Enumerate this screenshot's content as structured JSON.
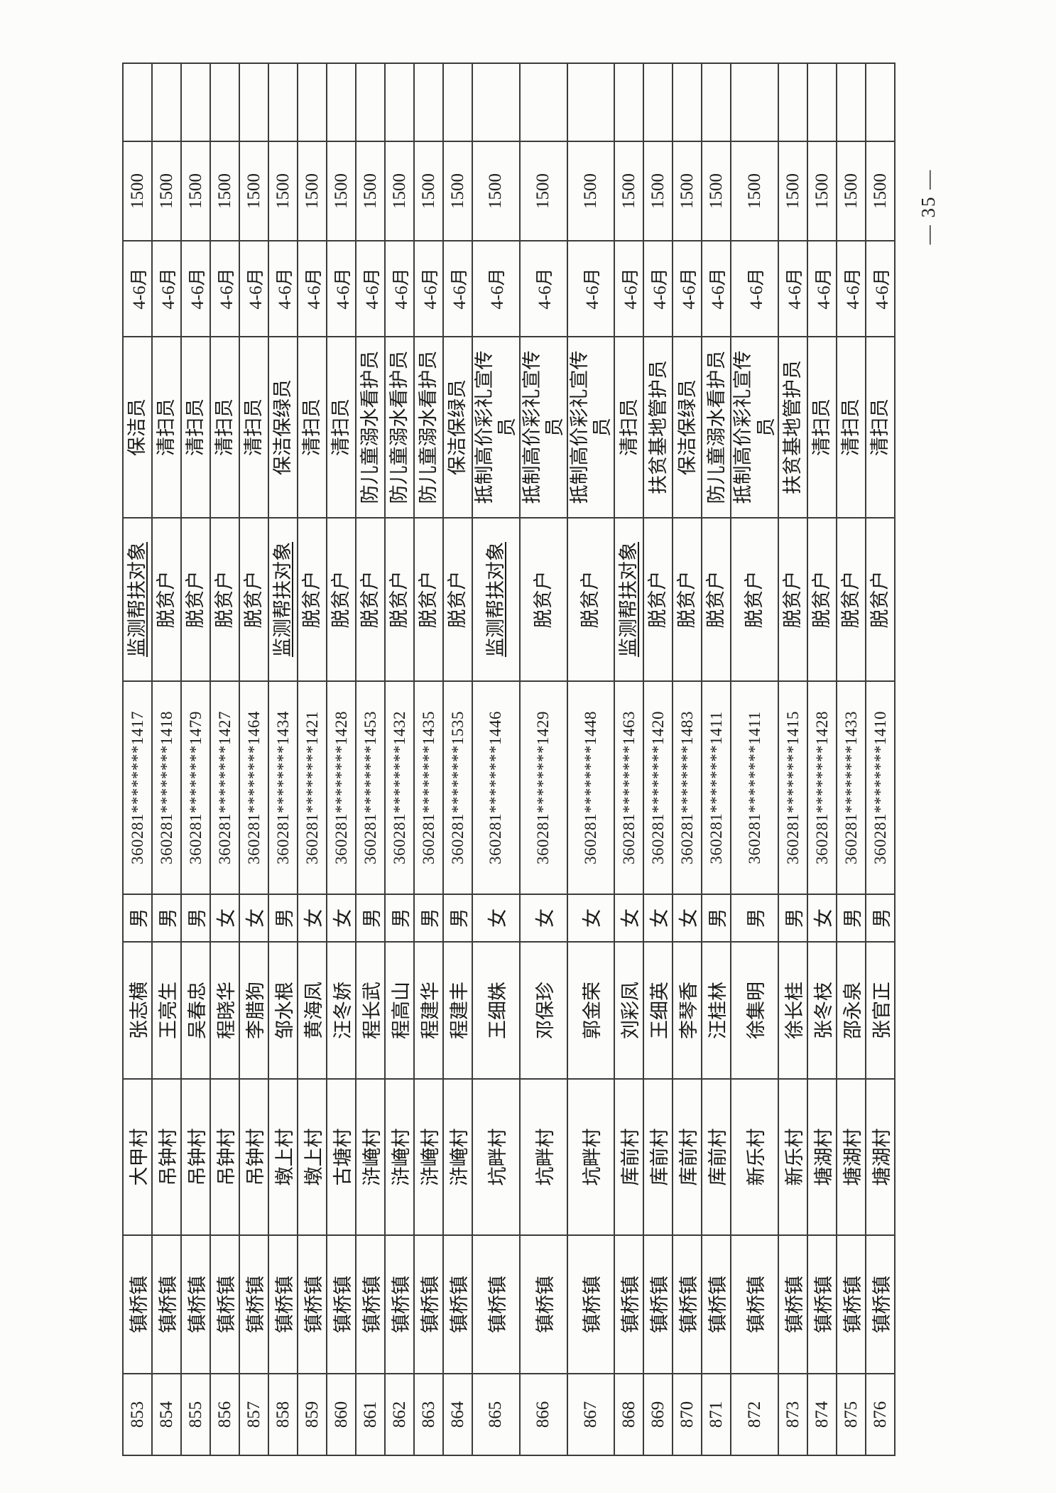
{
  "page": {
    "number_label": "— 35 —",
    "ink_color": "#1b1b1b",
    "line_color": "#3c3c3c",
    "paper_color": "#fcfcfa"
  },
  "table": {
    "orientation_note": "rotated-90deg-ccw-on-portrait-page",
    "rows": [
      {
        "seq": "853",
        "town": "镇桥镇",
        "village": "大甲村",
        "name": "张志横",
        "gender": "男",
        "id_number": "360281********1417",
        "category": "监测帮扶对象",
        "job": "保洁员",
        "months": "4-6月",
        "amount": "1500"
      },
      {
        "seq": "854",
        "town": "镇桥镇",
        "village": "吊钟村",
        "name": "王亮生",
        "gender": "男",
        "id_number": "360281********1418",
        "category": "脱贫户",
        "job": "清扫员",
        "months": "4-6月",
        "amount": "1500"
      },
      {
        "seq": "855",
        "town": "镇桥镇",
        "village": "吊钟村",
        "name": "吴春忠",
        "gender": "男",
        "id_number": "360281********1479",
        "category": "脱贫户",
        "job": "清扫员",
        "months": "4-6月",
        "amount": "1500"
      },
      {
        "seq": "856",
        "town": "镇桥镇",
        "village": "吊钟村",
        "name": "程晓华",
        "gender": "女",
        "id_number": "360281********1427",
        "category": "脱贫户",
        "job": "清扫员",
        "months": "4-6月",
        "amount": "1500"
      },
      {
        "seq": "857",
        "town": "镇桥镇",
        "village": "吊钟村",
        "name": "李腊狗",
        "gender": "女",
        "id_number": "360281********1464",
        "category": "脱贫户",
        "job": "清扫员",
        "months": "4-6月",
        "amount": "1500"
      },
      {
        "seq": "858",
        "town": "镇桥镇",
        "village": "墩上村",
        "name": "邹水根",
        "gender": "男",
        "id_number": "360281********1434",
        "category": "监测帮扶对象",
        "job": "保洁保绿员",
        "months": "4-6月",
        "amount": "1500"
      },
      {
        "seq": "859",
        "town": "镇桥镇",
        "village": "墩上村",
        "name": "黄海凤",
        "gender": "女",
        "id_number": "360281********1421",
        "category": "脱贫户",
        "job": "清扫员",
        "months": "4-6月",
        "amount": "1500"
      },
      {
        "seq": "860",
        "town": "镇桥镇",
        "village": "古塘村",
        "name": "汪冬娇",
        "gender": "女",
        "id_number": "360281********1428",
        "category": "脱贫户",
        "job": "清扫员",
        "months": "4-6月",
        "amount": "1500"
      },
      {
        "seq": "861",
        "town": "镇桥镇",
        "village": "浒崦村",
        "name": "程长武",
        "gender": "男",
        "id_number": "360281********1453",
        "category": "脱贫户",
        "job": "防儿童溺水看护员",
        "months": "4-6月",
        "amount": "1500"
      },
      {
        "seq": "862",
        "town": "镇桥镇",
        "village": "浒崦村",
        "name": "程高山",
        "gender": "男",
        "id_number": "360281********1432",
        "category": "脱贫户",
        "job": "防儿童溺水看护员",
        "months": "4-6月",
        "amount": "1500"
      },
      {
        "seq": "863",
        "town": "镇桥镇",
        "village": "浒崦村",
        "name": "程建华",
        "gender": "男",
        "id_number": "360281********1435",
        "category": "脱贫户",
        "job": "防儿童溺水看护员",
        "months": "4-6月",
        "amount": "1500"
      },
      {
        "seq": "864",
        "town": "镇桥镇",
        "village": "浒崦村",
        "name": "程建丰",
        "gender": "男",
        "id_number": "360281********1535",
        "category": "脱贫户",
        "job": "保洁保绿员",
        "months": "4-6月",
        "amount": "1500"
      },
      {
        "seq": "865",
        "town": "镇桥镇",
        "village": "坑畔村",
        "name": "王细姝",
        "gender": "女",
        "id_number": "360281********1446",
        "category": "监测帮扶对象",
        "job": "抵制高价彩礼宣传员",
        "months": "4-6月",
        "amount": "1500"
      },
      {
        "seq": "866",
        "town": "镇桥镇",
        "village": "坑畔村",
        "name": "邓保珍",
        "gender": "女",
        "id_number": "360281********1429",
        "category": "脱贫户",
        "job": "抵制高价彩礼宣传员",
        "months": "4-6月",
        "amount": "1500"
      },
      {
        "seq": "867",
        "town": "镇桥镇",
        "village": "坑畔村",
        "name": "郭金荣",
        "gender": "女",
        "id_number": "360281********1448",
        "category": "脱贫户",
        "job": "抵制高价彩礼宣传员",
        "months": "4-6月",
        "amount": "1500"
      },
      {
        "seq": "868",
        "town": "镇桥镇",
        "village": "库前村",
        "name": "刘彩凤",
        "gender": "女",
        "id_number": "360281********1463",
        "category": "监测帮扶对象",
        "job": "清扫员",
        "months": "4-6月",
        "amount": "1500"
      },
      {
        "seq": "869",
        "town": "镇桥镇",
        "village": "库前村",
        "name": "王细英",
        "gender": "女",
        "id_number": "360281********1420",
        "category": "脱贫户",
        "job": "扶贫基地管护员",
        "months": "4-6月",
        "amount": "1500"
      },
      {
        "seq": "870",
        "town": "镇桥镇",
        "village": "库前村",
        "name": "李琴香",
        "gender": "女",
        "id_number": "360281********1483",
        "category": "脱贫户",
        "job": "保洁保绿员",
        "months": "4-6月",
        "amount": "1500"
      },
      {
        "seq": "871",
        "town": "镇桥镇",
        "village": "库前村",
        "name": "汪桂林",
        "gender": "男",
        "id_number": "360281********1411",
        "category": "脱贫户",
        "job": "防儿童溺水看护员",
        "months": "4-6月",
        "amount": "1500"
      },
      {
        "seq": "872",
        "town": "镇桥镇",
        "village": "新乐村",
        "name": "徐集明",
        "gender": "男",
        "id_number": "360281********1411",
        "category": "脱贫户",
        "job": "抵制高价彩礼宣传员",
        "months": "4-6月",
        "amount": "1500"
      },
      {
        "seq": "873",
        "town": "镇桥镇",
        "village": "新乐村",
        "name": "徐长桂",
        "gender": "男",
        "id_number": "360281********1415",
        "category": "脱贫户",
        "job": "扶贫基地管护员",
        "months": "4-6月",
        "amount": "1500"
      },
      {
        "seq": "874",
        "town": "镇桥镇",
        "village": "塘湖村",
        "name": "张冬枝",
        "gender": "女",
        "id_number": "360281********1428",
        "category": "脱贫户",
        "job": "清扫员",
        "months": "4-6月",
        "amount": "1500"
      },
      {
        "seq": "875",
        "town": "镇桥镇",
        "village": "塘湖村",
        "name": "邵永泉",
        "gender": "男",
        "id_number": "360281********1433",
        "category": "脱贫户",
        "job": "清扫员",
        "months": "4-6月",
        "amount": "1500"
      },
      {
        "seq": "876",
        "town": "镇桥镇",
        "village": "塘湖村",
        "name": "张官正",
        "gender": "男",
        "id_number": "360281********1410",
        "category": "脱贫户",
        "job": "清扫员",
        "months": "4-6月",
        "amount": "1500"
      }
    ]
  }
}
